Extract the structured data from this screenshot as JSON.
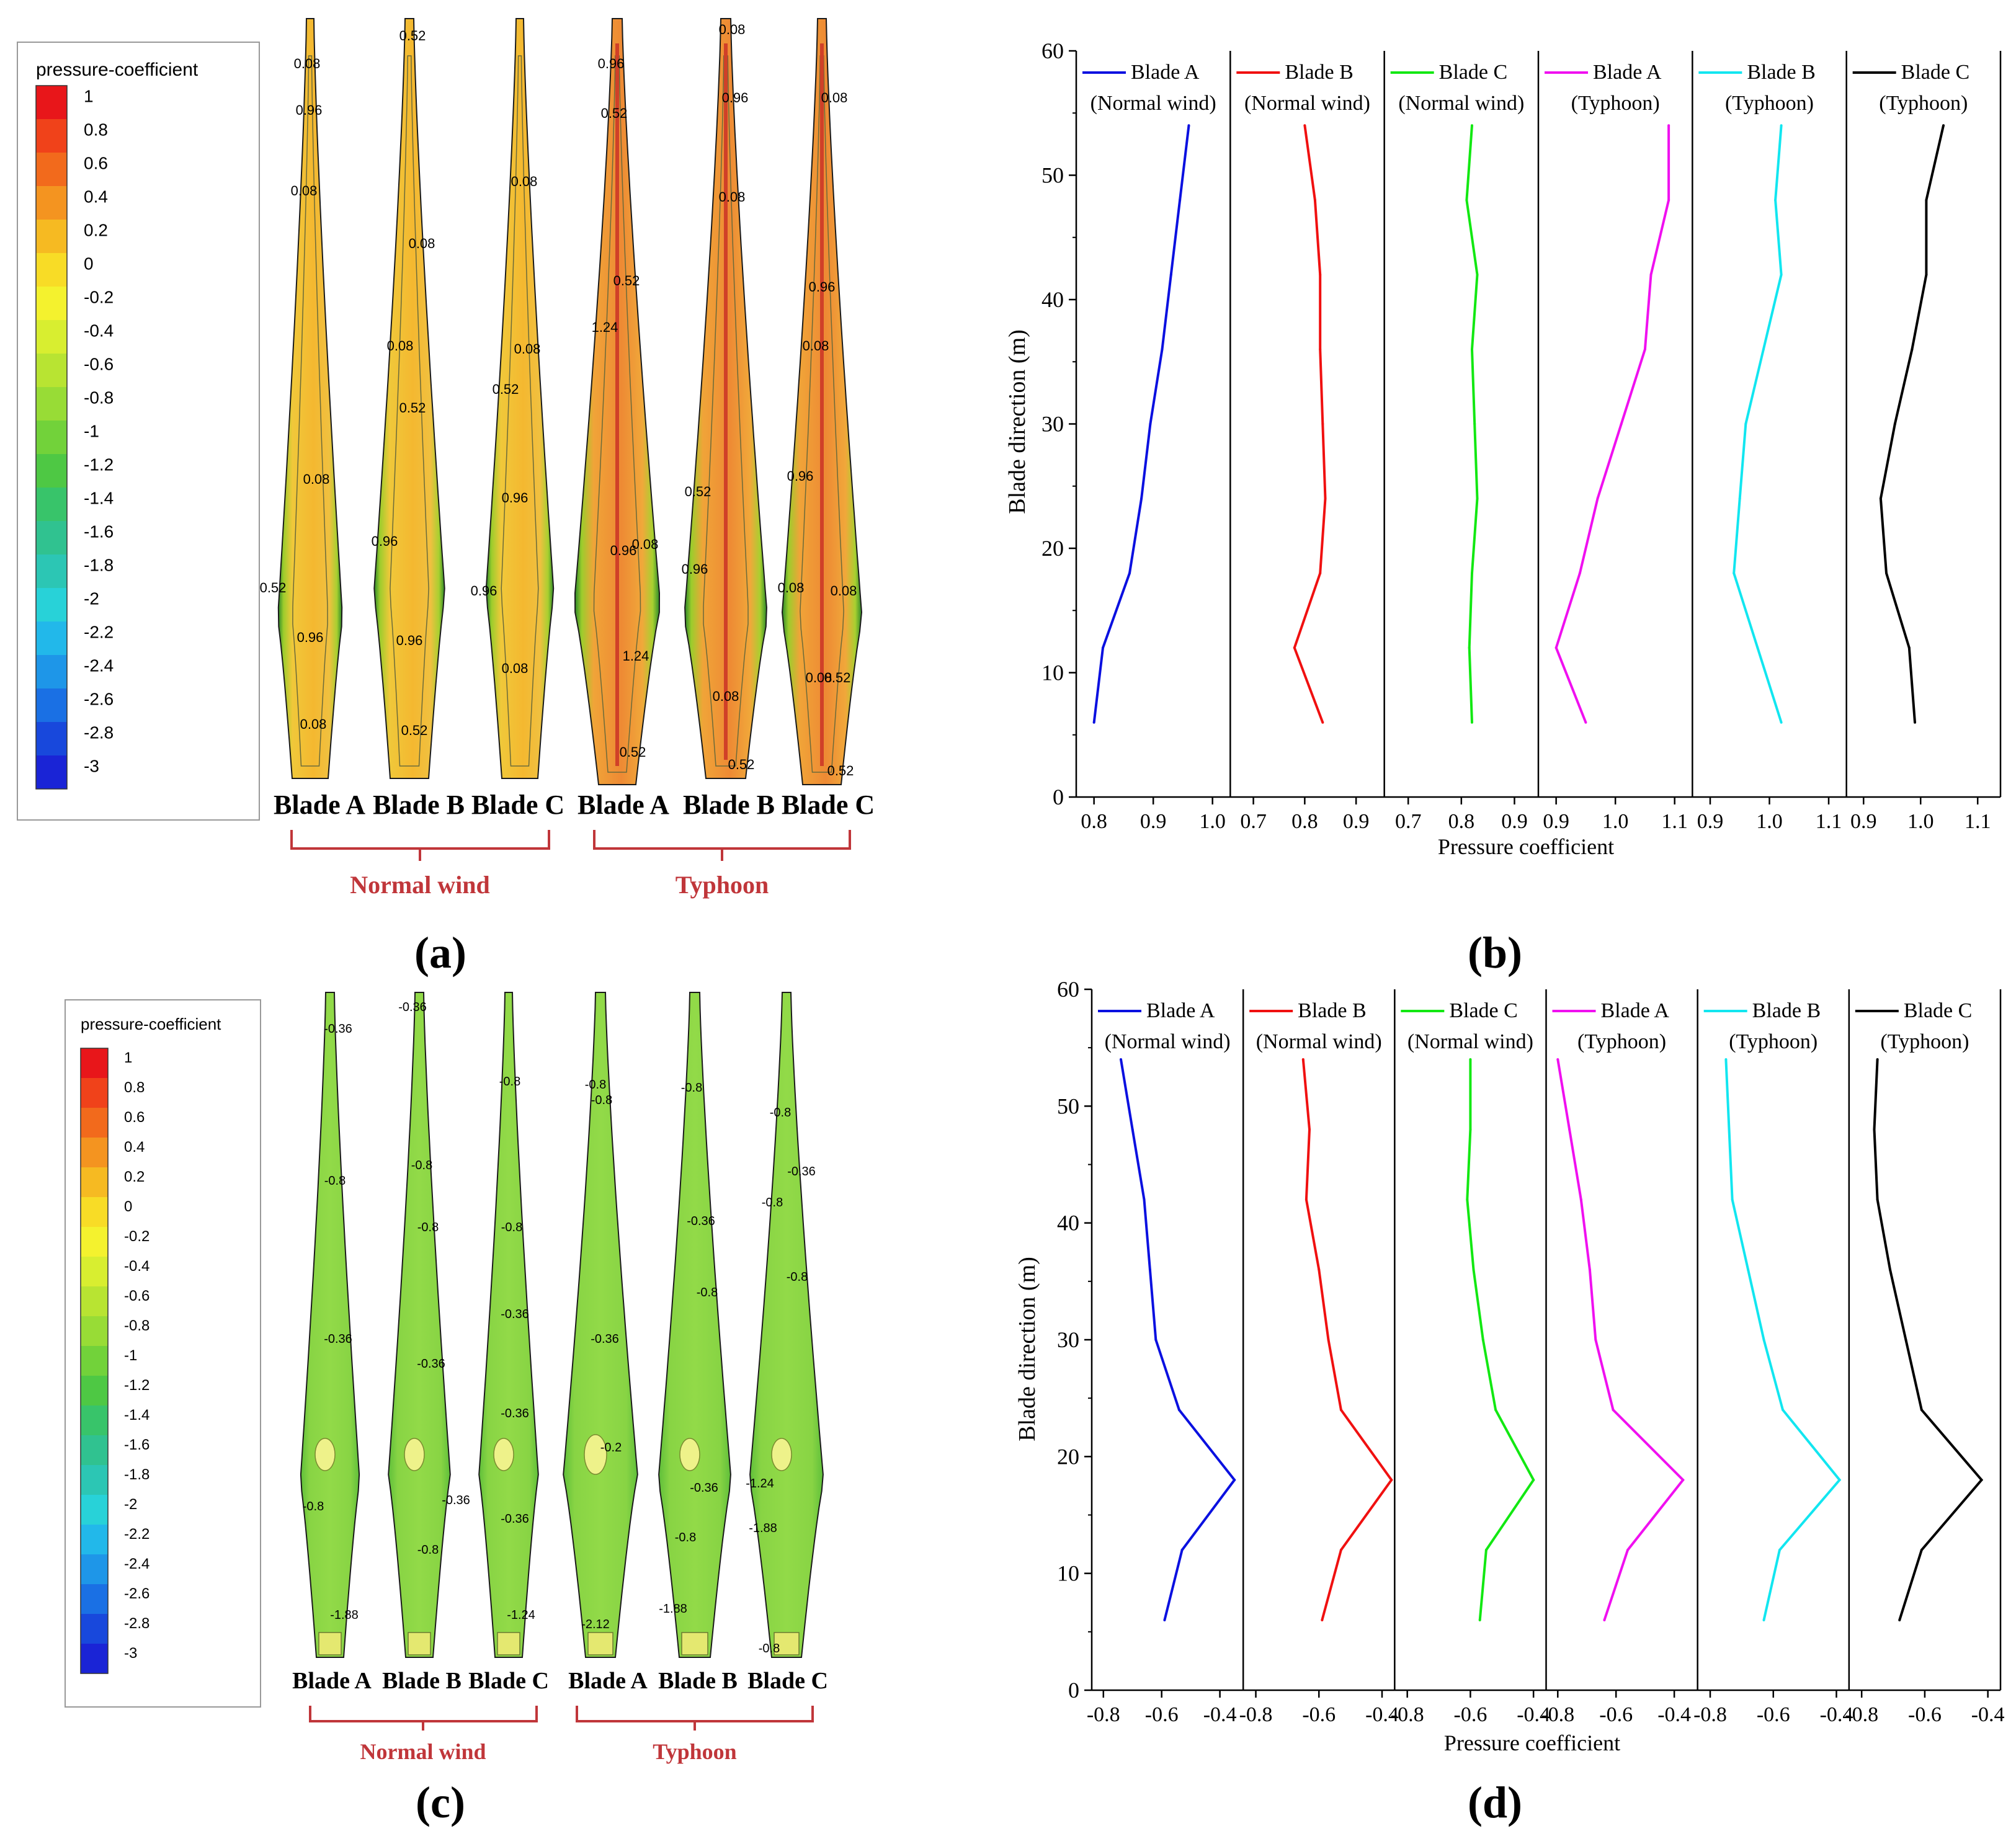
{
  "panel_labels": [
    "(a)",
    "(b)",
    "(c)",
    "(d)"
  ],
  "pressure_legend": {
    "title": "pressure-coefficient",
    "ticks": [
      "1",
      "0.8",
      "0.6",
      "0.4",
      "0.2",
      "0",
      "-0.2",
      "-0.4",
      "-0.6",
      "-0.8",
      "-1",
      "-1.2",
      "-1.4",
      "-1.6",
      "-1.8",
      "-2",
      "-2.2",
      "-2.4",
      "-2.6",
      "-2.8",
      "-3"
    ],
    "colors": [
      "#e8161a",
      "#f0421a",
      "#f26a1c",
      "#f49420",
      "#f6ba22",
      "#f8dc26",
      "#f4f22e",
      "#d8ee30",
      "#b8e432",
      "#98dc36",
      "#72d23a",
      "#4ec844",
      "#38c46a",
      "#30c290",
      "#2cc6b4",
      "#28d2d8",
      "#22b8ea",
      "#1e96e8",
      "#1a70e4",
      "#1848dc",
      "#1a24d6"
    ]
  },
  "contour_a": {
    "blades": [
      "Blade A",
      "Blade B",
      "Blade C",
      "Blade A",
      "Blade B",
      "Blade C"
    ],
    "groups": [
      "Normal wind",
      "Typhoon"
    ],
    "labels": [
      "0.08",
      "0.96",
      "0.08",
      "0.08",
      "0.52",
      "0.96",
      "0.08",
      "0.52",
      "0.08",
      "0.08",
      "0.52",
      "0.96",
      "0.96",
      "0.52",
      "0.08",
      "0.08",
      "0.52",
      "0.96",
      "0.96",
      "0.08",
      "0.96",
      "0.52",
      "0.52",
      "1.24",
      "0.08",
      "0.96",
      "1.24",
      "0.52",
      "0.08",
      "0.96",
      "0.08",
      "0.52",
      "0.96",
      "0.08",
      "0.52",
      "0.08",
      "0.96",
      "0.08",
      "0.96",
      "0.08",
      "0.08",
      "0.52",
      "0.52",
      "0.08"
    ]
  },
  "contour_c": {
    "blades": [
      "Blade A",
      "Blade B",
      "Blade C",
      "Blade A",
      "Blade B",
      "Blade C"
    ],
    "groups": [
      "Normal wind",
      "Typhoon"
    ],
    "labels": [
      "-0.36",
      "-0.8",
      "-0.36",
      "-0.8",
      "-1.88",
      "-0.36",
      "-0.8",
      "-0.8",
      "-0.36",
      "-0.36",
      "-0.8",
      "-0.8",
      "-0.8",
      "-0.36",
      "-0.36",
      "-0.36",
      "-1.24",
      "-0.8",
      "-0.8",
      "-0.36",
      "-0.2",
      "-2.12",
      "-0.8",
      "-0.36",
      "-0.8",
      "-0.36",
      "-0.8",
      "-1.88",
      "-0.8",
      "-0.36",
      "-0.8",
      "-0.8",
      "-1.24",
      "-1.88",
      "-0.8"
    ]
  },
  "chart_data": [
    {
      "type": "line",
      "ylabel": "Blade direction (m)",
      "xlabel": "Pressure coefficient",
      "ylim": [
        0,
        60
      ],
      "yticks": [
        "0",
        "10",
        "20",
        "30",
        "40",
        "50",
        "60"
      ],
      "y": [
        6,
        12,
        18,
        24,
        30,
        36,
        42,
        48,
        54
      ],
      "series": [
        {
          "name": "Blade A",
          "sub": "(Normal wind)",
          "color": "#0a10e0",
          "xlim": [
            0.77,
            1.03
          ],
          "xticks": [
            "0.8",
            "0.9",
            "1.0"
          ],
          "xtick_vals": [
            0.8,
            0.9,
            1.0
          ],
          "values": [
            0.8,
            0.815,
            0.86,
            0.88,
            0.895,
            0.915,
            0.93,
            0.945,
            0.96
          ]
        },
        {
          "name": "Blade B",
          "sub": "(Normal wind)",
          "color": "#f01010",
          "xlim": [
            0.655,
            0.955
          ],
          "xticks": [
            "0.7",
            "0.8",
            "0.9"
          ],
          "xtick_vals": [
            0.7,
            0.8,
            0.9
          ],
          "values": [
            0.835,
            0.78,
            0.83,
            0.84,
            0.835,
            0.83,
            0.83,
            0.82,
            0.8
          ]
        },
        {
          "name": "Blade C",
          "sub": "(Normal wind)",
          "color": "#12e812",
          "xlim": [
            0.655,
            0.945
          ],
          "xticks": [
            "0.7",
            "0.8",
            "0.9"
          ],
          "xtick_vals": [
            0.7,
            0.8,
            0.9
          ],
          "values": [
            0.82,
            0.815,
            0.82,
            0.83,
            0.825,
            0.82,
            0.83,
            0.81,
            0.82
          ]
        },
        {
          "name": "Blade A",
          "sub": "(Typhoon)",
          "color": "#f010f0",
          "xlim": [
            0.87,
            1.13
          ],
          "xticks": [
            "0.9",
            "1.0",
            "1.1"
          ],
          "xtick_vals": [
            0.9,
            1.0,
            1.1
          ],
          "values": [
            0.95,
            0.9,
            0.94,
            0.97,
            1.01,
            1.05,
            1.06,
            1.09,
            1.09
          ]
        },
        {
          "name": "Blade B",
          "sub": "(Typhoon)",
          "color": "#12e6f0",
          "xlim": [
            0.87,
            1.13
          ],
          "xticks": [
            "0.9",
            "1.0",
            "1.1"
          ],
          "xtick_vals": [
            0.9,
            1.0,
            1.1
          ],
          "values": [
            1.02,
            0.98,
            0.94,
            0.95,
            0.96,
            0.99,
            1.02,
            1.01,
            1.02
          ]
        },
        {
          "name": "Blade C",
          "sub": "(Typhoon)",
          "color": "#000000",
          "xlim": [
            0.87,
            1.14
          ],
          "xticks": [
            "0.9",
            "1.0",
            "1.1"
          ],
          "xtick_vals": [
            0.9,
            1.0,
            1.1
          ],
          "values": [
            0.99,
            0.98,
            0.94,
            0.93,
            0.955,
            0.985,
            1.01,
            1.01,
            1.04
          ]
        }
      ]
    },
    {
      "type": "line",
      "ylabel": "Blade direction (m)",
      "xlabel": "Pressure coefficient",
      "ylim": [
        0,
        60
      ],
      "yticks": [
        "0",
        "10",
        "20",
        "30",
        "40",
        "50",
        "60"
      ],
      "y": [
        6,
        12,
        18,
        24,
        30,
        36,
        42,
        48,
        54
      ],
      "series": [
        {
          "name": "Blade A",
          "sub": "(Normal wind)",
          "color": "#0a10e0",
          "xlim": [
            -0.84,
            -0.32
          ],
          "xticks": [
            "-0.8",
            "-0.6",
            "-0.4"
          ],
          "xtick_vals": [
            -0.8,
            -0.6,
            -0.4
          ],
          "values": [
            -0.59,
            -0.53,
            -0.35,
            -0.54,
            -0.62,
            -0.64,
            -0.66,
            -0.7,
            -0.74
          ]
        },
        {
          "name": "Blade B",
          "sub": "(Normal wind)",
          "color": "#f01010",
          "xlim": [
            -0.84,
            -0.36
          ],
          "xticks": [
            "-0.8",
            "-0.6",
            "-0.4"
          ],
          "xtick_vals": [
            -0.8,
            -0.6,
            -0.4
          ],
          "values": [
            -0.59,
            -0.53,
            -0.37,
            -0.53,
            -0.57,
            -0.6,
            -0.64,
            -0.63,
            -0.65
          ]
        },
        {
          "name": "Blade C",
          "sub": "(Normal wind)",
          "color": "#12e812",
          "xlim": [
            -0.84,
            -0.36
          ],
          "xticks": [
            "-0.8",
            "-0.6",
            "-0.4"
          ],
          "xtick_vals": [
            -0.8,
            -0.6,
            -0.4
          ],
          "values": [
            -0.57,
            -0.55,
            -0.4,
            -0.52,
            -0.56,
            -0.59,
            -0.61,
            -0.6,
            -0.6
          ]
        },
        {
          "name": "Blade A",
          "sub": "(Typhoon)",
          "color": "#f010f0",
          "xlim": [
            -0.84,
            -0.32
          ],
          "xticks": [
            "-0.8",
            "-0.6",
            "-0.4"
          ],
          "xtick_vals": [
            -0.8,
            -0.6,
            -0.4
          ],
          "values": [
            -0.64,
            -0.56,
            -0.37,
            -0.61,
            -0.67,
            -0.69,
            -0.72,
            -0.76,
            -0.8
          ]
        },
        {
          "name": "Blade B",
          "sub": "(Typhoon)",
          "color": "#12e6f0",
          "xlim": [
            -0.84,
            -0.36
          ],
          "xticks": [
            "-0.8",
            "-0.6",
            "-0.4"
          ],
          "xtick_vals": [
            -0.8,
            -0.6,
            -0.4
          ],
          "values": [
            -0.63,
            -0.58,
            -0.39,
            -0.57,
            -0.63,
            -0.68,
            -0.73,
            -0.74,
            -0.75
          ]
        },
        {
          "name": "Blade C",
          "sub": "(Typhoon)",
          "color": "#000000",
          "xlim": [
            -0.84,
            -0.36
          ],
          "xticks": [
            "-0.8",
            "-0.6",
            "-0.4"
          ],
          "xtick_vals": [
            -0.8,
            -0.6,
            -0.4
          ],
          "values": [
            -0.68,
            -0.61,
            -0.42,
            -0.61,
            -0.66,
            -0.71,
            -0.75,
            -0.76,
            -0.75
          ]
        }
      ]
    }
  ]
}
